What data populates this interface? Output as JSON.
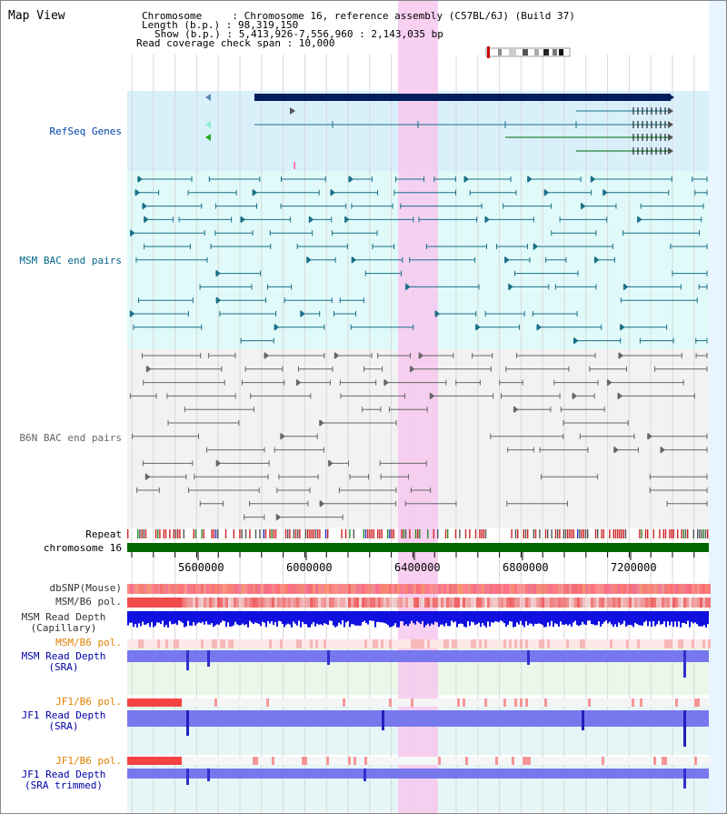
{
  "title": "Map View",
  "info": {
    "line1": "Chromosome     : Chromosome 16, reference assembly (C57BL/6J) (Build 37)",
    "line2": "Length (b.p.) : 98,319,150",
    "line3": "Show (b.p.) : 5,413,926-7,556,960 : 2,143,035 bp",
    "line4": "Read coverage check span : 10,000"
  },
  "tracks": {
    "refseq": "RefSeq Genes",
    "msm_bac": "MSM BAC end pairs",
    "b6n_bac": "B6N BAC end pairs",
    "repeat": "Repeat",
    "chromosome": "chromosome 16",
    "dbsnp": "dbSNP(Mouse)",
    "msm_b6_pol": "MSM/B6 pol.",
    "msm_depth_cap_1": "MSM Read Depth",
    "msm_depth_cap_2": "(Capillary)",
    "msm_b6_pol2": "MSM/B6 pol.",
    "msm_depth_sra_1": "MSM Read Depth",
    "msm_depth_sra_2": "(SRA)",
    "jf1_pol": "JF1/B6 pol.",
    "jf1_depth_sra_1": "JF1 Read Depth",
    "jf1_depth_sra_2": "(SRA)",
    "jf1_pol2": "JF1/B6 pol.",
    "jf1_depth_trim_1": "JF1 Read Depth",
    "jf1_depth_trim_2": "(SRA trimmed)"
  },
  "axis": {
    "ticks": [
      "5600000",
      "6000000",
      "6400000",
      "6800000",
      "7200000"
    ]
  },
  "colors": {
    "refseq_bg": "#d9f0fb",
    "msm_bg": "#e0fafa",
    "b6n_bg": "#f2f2f2",
    "highlight": "#f7c8ee",
    "chromosome": "#006600",
    "refseq_gene": "#001f5c",
    "msm_pair": "#1a6f87",
    "b6n_pair": "#666666",
    "msm_label": "#006688",
    "orange_label": "#e08000",
    "blue_label": "#0000aa"
  }
}
